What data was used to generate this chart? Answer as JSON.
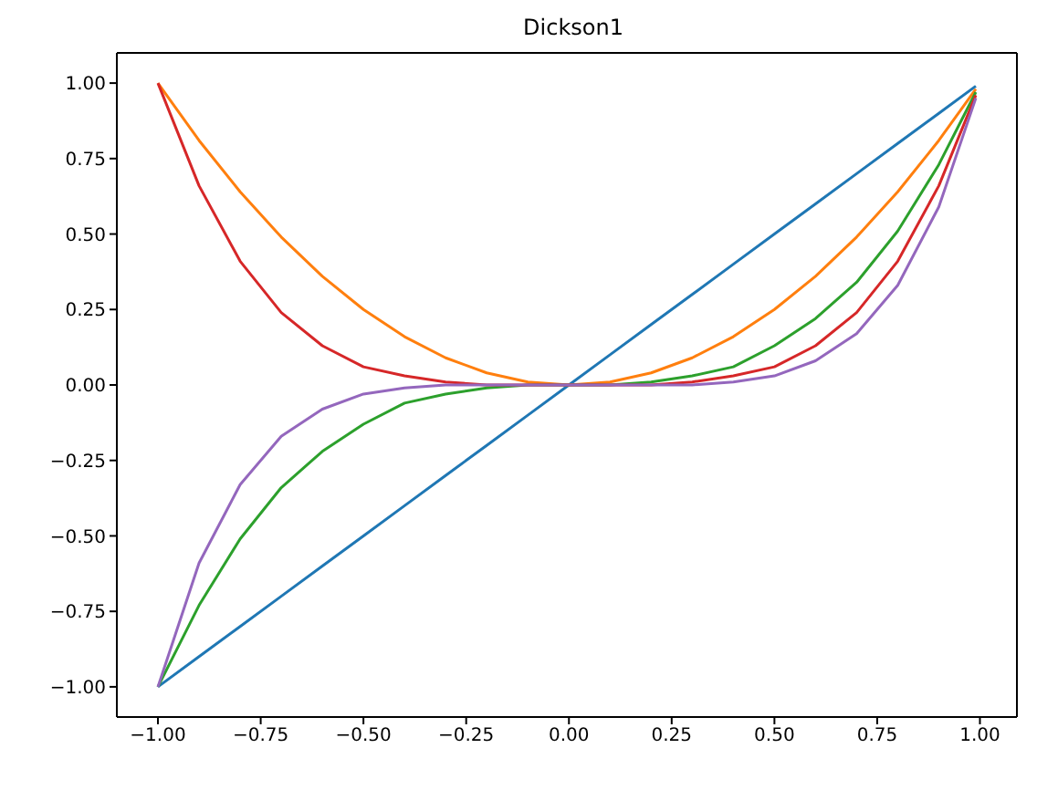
{
  "chart_data": {
    "type": "line",
    "title": "Dickson1",
    "x": [
      -1,
      -0.9,
      -0.8,
      -0.7,
      -0.6,
      -0.5,
      -0.4,
      -0.3,
      -0.2,
      -0.1,
      0,
      0.1,
      0.2,
      0.3,
      0.4,
      0.5,
      0.6,
      0.7,
      0.8,
      0.9,
      0.99
    ],
    "series": [
      {
        "color": "#1f77b4",
        "values": [
          -1,
          -0.9,
          -0.8,
          -0.7,
          -0.6,
          -0.5,
          -0.4,
          -0.3,
          -0.2,
          -0.1,
          0,
          0.1,
          0.2,
          0.3,
          0.4,
          0.5,
          0.6,
          0.7,
          0.8,
          0.9,
          0.99
        ]
      },
      {
        "color": "#ff7f0e",
        "values": [
          1,
          0.81,
          0.64,
          0.49,
          0.36,
          0.25,
          0.16,
          0.09,
          0.04,
          0.01,
          0,
          0.01,
          0.04,
          0.09,
          0.16,
          0.25,
          0.36,
          0.49,
          0.64,
          0.81,
          0.98
        ]
      },
      {
        "color": "#2ca02c",
        "values": [
          -1,
          -0.73,
          -0.51,
          -0.34,
          -0.22,
          -0.13,
          -0.06,
          -0.03,
          -0.01,
          0,
          0,
          0,
          0.01,
          0.03,
          0.06,
          0.13,
          0.22,
          0.34,
          0.51,
          0.73,
          0.97
        ]
      },
      {
        "color": "#d62728",
        "values": [
          1,
          0.66,
          0.41,
          0.24,
          0.13,
          0.06,
          0.03,
          0.01,
          0,
          0,
          0,
          0,
          0,
          0.01,
          0.03,
          0.06,
          0.13,
          0.24,
          0.41,
          0.66,
          0.96
        ]
      },
      {
        "color": "#9467bd",
        "values": [
          -1,
          -0.59,
          -0.33,
          -0.17,
          -0.08,
          -0.03,
          -0.01,
          0,
          0,
          0,
          0,
          0,
          0,
          0,
          0.01,
          0.03,
          0.08,
          0.17,
          0.33,
          0.59,
          0.95
        ]
      }
    ],
    "xlim": [
      -1.1,
      1.09
    ],
    "xticks": [
      {
        "value": -1,
        "label": "−1.00"
      },
      {
        "value": -0.75,
        "label": "−0.75"
      },
      {
        "value": -0.5,
        "label": "−0.50"
      },
      {
        "value": -0.25,
        "label": "−0.25"
      },
      {
        "value": 0,
        "label": "0.00"
      },
      {
        "value": 0.25,
        "label": "0.25"
      },
      {
        "value": 0.5,
        "label": "0.50"
      },
      {
        "value": 0.75,
        "label": "0.75"
      },
      {
        "value": 1,
        "label": "1.00"
      }
    ],
    "ylim": [
      -1.1,
      1.1
    ],
    "yticks": [
      {
        "value": -1,
        "label": "−1.00"
      },
      {
        "value": -0.75,
        "label": "−0.75"
      },
      {
        "value": -0.5,
        "label": "−0.50"
      },
      {
        "value": -0.25,
        "label": "−0.25"
      },
      {
        "value": 0,
        "label": "0.00"
      },
      {
        "value": 0.25,
        "label": "0.25"
      },
      {
        "value": 0.5,
        "label": "0.50"
      },
      {
        "value": 0.75,
        "label": "0.75"
      },
      {
        "value": 1,
        "label": "1.00"
      }
    ],
    "grid": false,
    "legend": false,
    "marker": "none",
    "line_style": "solid"
  }
}
